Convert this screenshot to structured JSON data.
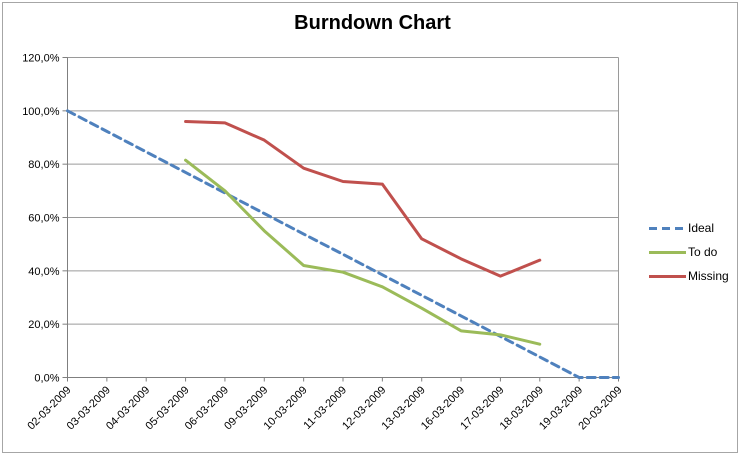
{
  "window": {
    "frame_border_color": "#a6a6a6",
    "background": "#ffffff"
  },
  "chart_data": {
    "type": "line",
    "title": "Burndown Chart",
    "categories": [
      "02-03-2009",
      "03-03-2009",
      "04-03-2009",
      "05-03-2009",
      "06-03-2009",
      "09-03-2009",
      "10-03-2009",
      "11-03-2009",
      "12-03-2009",
      "13-03-2009",
      "16-03-2009",
      "17-03-2009",
      "18-03-2009",
      "19-03-2009",
      "20-03-2009"
    ],
    "y_ticks": [
      0,
      20,
      40,
      60,
      80,
      100,
      120
    ],
    "y_tick_labels": [
      "0,0%",
      "20,0%",
      "40,0%",
      "60,0%",
      "80,0%",
      "100,0%",
      "120,0%"
    ],
    "ylim": [
      0,
      120
    ],
    "grid": true,
    "legend_position": "right",
    "series": [
      {
        "name": "Ideal",
        "color": "#4F81BD",
        "dashed": true,
        "values": [
          100,
          92.3,
          84.6,
          76.9,
          69.2,
          61.5,
          53.8,
          46.2,
          38.5,
          30.8,
          23.1,
          15.4,
          7.7,
          0,
          0
        ]
      },
      {
        "name": "To do",
        "color": "#9BBB59",
        "dashed": false,
        "values": [
          null,
          null,
          null,
          81.5,
          70,
          55,
          42,
          39.5,
          34,
          26,
          17.5,
          16,
          12.5,
          null,
          null
        ]
      },
      {
        "name": "Missing",
        "color": "#C0504D",
        "dashed": false,
        "values": [
          null,
          null,
          null,
          96,
          95.5,
          89,
          78.5,
          73.5,
          72.5,
          52,
          44.5,
          38,
          44,
          null,
          null
        ]
      }
    ],
    "colors": {
      "axis": "#7f7f7f",
      "gridline": "#9a9a9a",
      "tick_label": "#000000"
    }
  }
}
